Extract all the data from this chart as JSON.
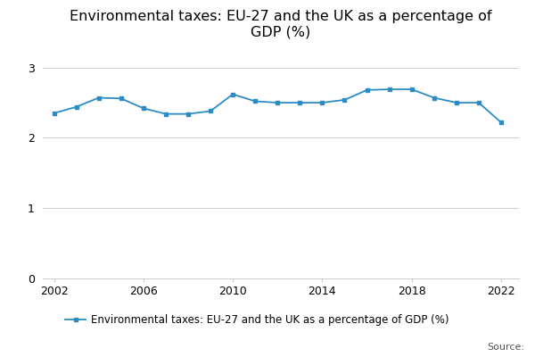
{
  "years": [
    2002,
    2003,
    2004,
    2005,
    2006,
    2007,
    2008,
    2009,
    2010,
    2011,
    2012,
    2013,
    2014,
    2015,
    2016,
    2017,
    2018,
    2019,
    2020,
    2021,
    2022
  ],
  "values": [
    2.35,
    2.44,
    2.57,
    2.56,
    2.42,
    2.34,
    2.34,
    2.38,
    2.62,
    2.52,
    2.5,
    2.5,
    2.5,
    2.54,
    2.68,
    2.69,
    2.69,
    2.57,
    2.5,
    2.5,
    2.22
  ],
  "line_color": "#2B8CC4",
  "marker_style": "s",
  "marker_size": 3,
  "title": "Environmental taxes: EU-27 and the UK as a percentage of\nGDP (%)",
  "legend_label": "Environmental taxes: EU-27 and the UK as a percentage of GDP (%)",
  "source_text": "Source:",
  "xlim": [
    2001.5,
    2022.8
  ],
  "ylim": [
    0,
    3.3
  ],
  "yticks": [
    0,
    1,
    2,
    3
  ],
  "xticks": [
    2002,
    2006,
    2010,
    2014,
    2018,
    2022
  ],
  "grid_color": "#cccccc",
  "background_color": "#ffffff",
  "title_fontsize": 11.5,
  "axis_fontsize": 9,
  "legend_fontsize": 8.5,
  "source_fontsize": 8
}
